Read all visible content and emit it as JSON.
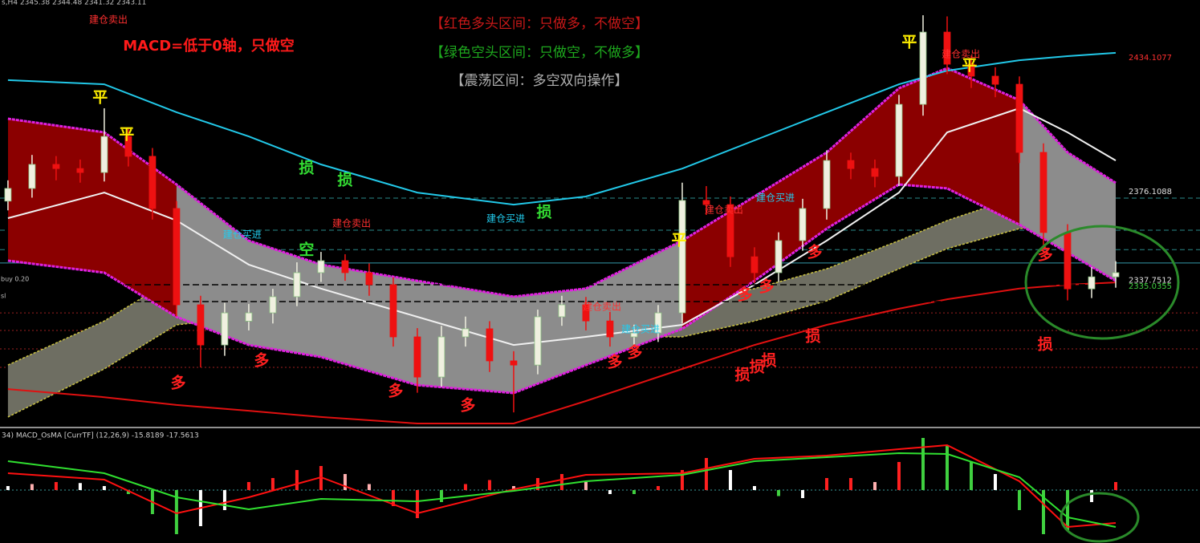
{
  "header": {
    "symbol_info": "s,H4  2345.38 2344.48 2341.32 2343.11"
  },
  "notes": [
    "【红色多头区间：只做多，不做空】",
    "【绿色空头区间：只做空，不做多】",
    "【震荡区间：多空双向操作】",
    "MACD=低于0轴，只做空"
  ],
  "chart_data": [
    {
      "type": "candlestick",
      "xlim": [
        -0.33,
        49.5
      ],
      "ylim": [
        2274.3,
        2459.1
      ],
      "up_color": "#f0f0e0",
      "down_color": "#ee1111",
      "open": [
        2372.0,
        2377.5,
        2387.9,
        2386.1,
        2384.4,
        2400.0,
        2391.4,
        2368.8,
        2327.1,
        2309.7,
        2320.0,
        2323.6,
        2330.6,
        2341.0,
        2346.2,
        2341.0,
        2335.8,
        2313.2,
        2295.8,
        2313.2,
        2316.7,
        2302.8,
        2301.0,
        2321.9,
        2327.1,
        2320.1,
        2313.2,
        2314.9,
        2323.6,
        2372.3,
        2370.5,
        2347.9,
        2341.0,
        2354.9,
        2368.8,
        2389.6,
        2386.1,
        2382.7,
        2413.9,
        2445.2,
        2431.3,
        2426.1,
        2422.6,
        2393.1,
        2358.4,
        2334.0,
        2339.2
      ],
      "high": [
        2381.0,
        2392.0,
        2391.5,
        2390.0,
        2412.2,
        2404.0,
        2395.0,
        2372.0,
        2331.0,
        2328.0,
        2327.5,
        2334.0,
        2345.5,
        2350.0,
        2349.0,
        2345.0,
        2339.0,
        2317.0,
        2318.0,
        2322.0,
        2320.0,
        2307.0,
        2325.0,
        2331.0,
        2330.5,
        2324.0,
        2318.5,
        2327.0,
        2380.0,
        2378.5,
        2374.0,
        2352.0,
        2358.5,
        2373.0,
        2394.0,
        2393.0,
        2390.0,
        2418.0,
        2452.5,
        2452.0,
        2435.0,
        2430.0,
        2426.0,
        2397.0,
        2362.0,
        2343.5,
        2346.0
      ],
      "low": [
        2368.0,
        2373.5,
        2381.0,
        2380.0,
        2380.5,
        2387.0,
        2364.0,
        2322.0,
        2300.0,
        2305.0,
        2316.0,
        2319.0,
        2326.5,
        2337.0,
        2337.5,
        2331.0,
        2309.0,
        2289.0,
        2291.5,
        2309.0,
        2298.0,
        2280.5,
        2297.0,
        2318.0,
        2316.0,
        2309.0,
        2309.5,
        2311.0,
        2319.0,
        2366.0,
        2343.5,
        2336.5,
        2337.0,
        2350.5,
        2364.0,
        2381.5,
        2378.0,
        2378.5,
        2409.0,
        2427.0,
        2421.0,
        2417.0,
        2388.5,
        2353.0,
        2329.0,
        2330.0,
        2334.5
      ],
      "close": [
        2377.5,
        2387.9,
        2386.1,
        2384.4,
        2400.0,
        2391.4,
        2368.8,
        2327.1,
        2309.7,
        2323.6,
        2323.6,
        2330.6,
        2341.0,
        2346.2,
        2341.0,
        2335.8,
        2313.2,
        2295.8,
        2313.2,
        2316.7,
        2302.8,
        2301.0,
        2321.9,
        2327.1,
        2320.1,
        2313.2,
        2314.9,
        2323.6,
        2372.3,
        2370.5,
        2347.9,
        2341.0,
        2354.9,
        2368.8,
        2389.6,
        2386.1,
        2382.7,
        2413.9,
        2445.2,
        2431.3,
        2426.1,
        2422.6,
        2393.1,
        2358.4,
        2334.0,
        2339.2,
        2341.0
      ],
      "ribbon": {
        "fill": "#6e6e62",
        "edge_color": "#c8c040",
        "upper": {
          "x": [
            0,
            4,
            7,
            10,
            13,
            17,
            21,
            24,
            28,
            31,
            34,
            37,
            39,
            42,
            44,
            46
          ],
          "values": [
            2301.0,
            2320.1,
            2339.2,
            2342.7,
            2341.0,
            2334.1,
            2330.6,
            2328.8,
            2327.8,
            2334.1,
            2342.7,
            2354.9,
            2363.6,
            2374.0,
            2377.5,
            2376.8
          ]
        },
        "lower": {
          "x": [
            0,
            4,
            7,
            10,
            13,
            17,
            21,
            24,
            28,
            31,
            34,
            37,
            39,
            42,
            44,
            46
          ],
          "values": [
            2278.5,
            2299.3,
            2318.4,
            2321.9,
            2320.1,
            2316.7,
            2313.2,
            2313.2,
            2313.2,
            2320.1,
            2328.8,
            2342.7,
            2351.4,
            2360.1,
            2361.8,
            2361.1
          ]
        }
      },
      "band": {
        "color": "#e020e0",
        "fills": [
          {
            "from": 0,
            "to": 7,
            "color": "#8b0000"
          },
          {
            "from": 7,
            "to": 28,
            "color": "#8c8c8c"
          },
          {
            "from": 28,
            "to": 42,
            "color": "#8b0000"
          },
          {
            "from": 42,
            "to": 46,
            "color": "#8c8c8c"
          }
        ],
        "upper": {
          "x": [
            0,
            4,
            7,
            10,
            13,
            17,
            21,
            24,
            28,
            31,
            34,
            37,
            39,
            42,
            44,
            46
          ],
          "values": [
            2407.7,
            2401.8,
            2379.2,
            2354.9,
            2344.5,
            2337.5,
            2330.6,
            2334.1,
            2354.9,
            2374.0,
            2393.1,
            2420.9,
            2429.6,
            2415.7,
            2393.1,
            2379.9
          ]
        },
        "lower": {
          "x": [
            0,
            4,
            7,
            10,
            13,
            17,
            21,
            24,
            28,
            31,
            34,
            37,
            39,
            42,
            44,
            46
          ],
          "values": [
            2346.2,
            2341.0,
            2321.9,
            2309.7,
            2304.5,
            2292.3,
            2288.9,
            2301.0,
            2316.7,
            2337.5,
            2360.1,
            2379.2,
            2377.5,
            2361.8,
            2349.7,
            2337.5
          ]
        }
      },
      "lines": [
        {
          "color": "#22c8e8",
          "x": [
            0,
            4,
            7,
            10,
            13,
            17,
            21,
            24,
            28,
            31,
            34,
            37,
            39,
            42,
            44,
            46
          ],
          "values": [
            2424.4,
            2422.6,
            2410.5,
            2400.0,
            2387.9,
            2375.7,
            2370.5,
            2374.0,
            2386.1,
            2398.3,
            2410.5,
            2422.6,
            2428.5,
            2433.0,
            2434.8,
            2436.2
          ]
        },
        {
          "color": "#e01010",
          "x": [
            0,
            4,
            7,
            10,
            13,
            17,
            21,
            24,
            28,
            31,
            34,
            37,
            39,
            42,
            44,
            46
          ],
          "values": [
            2290.6,
            2287.1,
            2283.7,
            2281.2,
            2278.5,
            2275.7,
            2275.7,
            2285.4,
            2299.3,
            2309.7,
            2318.4,
            2325.4,
            2329.5,
            2334.1,
            2335.8,
            2336.8
          ]
        },
        {
          "color": "#f0f0f0",
          "x": [
            0,
            4,
            7,
            10,
            13,
            17,
            21,
            24,
            28,
            31,
            34,
            37,
            39,
            42,
            44,
            46
          ],
          "values": [
            2364.6,
            2375.7,
            2363.6,
            2344.5,
            2334.1,
            2321.9,
            2309.7,
            2313.2,
            2318.4,
            2335.8,
            2354.9,
            2375.7,
            2401.8,
            2412.2,
            2401.8,
            2389.6
          ]
        }
      ],
      "levels": [
        {
          "value": 2373.3,
          "color": "#2a8a8a",
          "style": "dashed"
        },
        {
          "value": 2359.4,
          "color": "#2a8a8a",
          "style": "dashed"
        },
        {
          "value": 2351.0,
          "color": "#2a8a8a",
          "style": "dashed"
        },
        {
          "value": 2345.2,
          "color": "#3399aa",
          "style": "solid"
        },
        {
          "value": 2323.6,
          "color": "#a02020",
          "style": "dotted"
        },
        {
          "value": 2316.0,
          "color": "#a02020",
          "style": "dotted"
        },
        {
          "value": 2308.0,
          "color": "#a02020",
          "style": "dotted"
        },
        {
          "value": 2300.0,
          "color": "#a02020",
          "style": "dotted"
        }
      ],
      "order_lines": [
        {
          "label": "buy 0.20",
          "value": 2335.8
        },
        {
          "label": "sl",
          "value": 2328.5
        }
      ],
      "price_tags": [
        {
          "value": 2434.1077,
          "color": "#ff3030"
        },
        {
          "value": 2376.1088,
          "color": "#e0e0e0"
        },
        {
          "value": 2337.7512,
          "color": "#e0e0e0"
        },
        {
          "value": 2335.0355,
          "color": "#40d040"
        }
      ],
      "annotations": [
        {
          "text": "建仓卖出",
          "x": 4.17,
          "y": 2450.4,
          "color": "#ff3030"
        },
        {
          "text": "平",
          "x": 3.83,
          "y": 2416.7,
          "color": "#ffee00"
        },
        {
          "text": "平",
          "x": 4.93,
          "y": 2400.7,
          "color": "#ffee00"
        },
        {
          "text": "损",
          "x": 12.4,
          "y": 2386.1,
          "color": "#33dd33"
        },
        {
          "text": "损",
          "x": 14.0,
          "y": 2380.9,
          "color": "#33dd33"
        },
        {
          "text": "损",
          "x": 22.27,
          "y": 2367.0,
          "color": "#33dd33"
        },
        {
          "text": "建仓买进",
          "x": 9.73,
          "y": 2357.3,
          "color": "#22ccee"
        },
        {
          "text": "空",
          "x": 12.4,
          "y": 2350.7,
          "color": "#33dd33"
        },
        {
          "text": "建仓卖出",
          "x": 14.27,
          "y": 2362.2,
          "color": "#ff3030"
        },
        {
          "text": "建仓买进",
          "x": 20.67,
          "y": 2364.3,
          "color": "#22ccee"
        },
        {
          "text": "多",
          "x": 7.07,
          "y": 2293.0,
          "color": "#ff2020"
        },
        {
          "text": "多",
          "x": 10.53,
          "y": 2302.8,
          "color": "#ff2020"
        },
        {
          "text": "多",
          "x": 16.1,
          "y": 2289.6,
          "color": "#ff2020"
        },
        {
          "text": "多",
          "x": 19.1,
          "y": 2283.3,
          "color": "#ff2020"
        },
        {
          "text": "平",
          "x": 27.87,
          "y": 2354.9,
          "color": "#ffee00"
        },
        {
          "text": "建仓卖出",
          "x": 29.73,
          "y": 2368.1,
          "color": "#ff3030"
        },
        {
          "text": "建仓买进",
          "x": 31.87,
          "y": 2373.3,
          "color": "#22ccee"
        },
        {
          "text": "建仓卖出",
          "x": 24.67,
          "y": 2326.1,
          "color": "#ff3030"
        },
        {
          "text": "建仓买进",
          "x": 26.27,
          "y": 2316.3,
          "color": "#22ccee"
        },
        {
          "text": "多",
          "x": 25.2,
          "y": 2302.1,
          "color": "#ff2020"
        },
        {
          "text": "多",
          "x": 26.03,
          "y": 2306.3,
          "color": "#ff2020"
        },
        {
          "text": "多",
          "x": 30.6,
          "y": 2331.3,
          "color": "#ff2020"
        },
        {
          "text": "多",
          "x": 31.5,
          "y": 2334.7,
          "color": "#ff2020"
        },
        {
          "text": "多",
          "x": 33.5,
          "y": 2349.7,
          "color": "#ff2020"
        },
        {
          "text": "损",
          "x": 33.43,
          "y": 2313.2,
          "color": "#ff2020"
        },
        {
          "text": "损",
          "x": 31.6,
          "y": 2302.8,
          "color": "#ff2020"
        },
        {
          "text": "损",
          "x": 31.1,
          "y": 2300.0,
          "color": "#ff2020"
        },
        {
          "text": "损",
          "x": 30.5,
          "y": 2296.5,
          "color": "#ff2020"
        },
        {
          "text": "平",
          "x": 37.43,
          "y": 2440.7,
          "color": "#ffee00"
        },
        {
          "text": "建仓卖出",
          "x": 39.57,
          "y": 2435.5,
          "color": "#ff3030"
        },
        {
          "text": "平",
          "x": 39.93,
          "y": 2430.6,
          "color": "#ffee00"
        },
        {
          "text": "多",
          "x": 43.07,
          "y": 2348.6,
          "color": "#ff2020"
        },
        {
          "text": "损",
          "x": 43.07,
          "y": 2309.7,
          "color": "#ff2020"
        }
      ]
    },
    {
      "type": "macd",
      "title": "34)  MACD_OsMA [CurrTF] (12,26,9) -15.8189 -17.5613",
      "xlim": [
        -0.33,
        49.5
      ],
      "ylim": [
        -26.4,
        29.6
      ],
      "values": [
        2.0,
        3.0,
        4.0,
        3.5,
        2.0,
        -2,
        -12,
        -22,
        -18,
        -10,
        4,
        6,
        10,
        12,
        8,
        3,
        -8,
        -14,
        -6,
        3,
        5,
        2,
        6,
        8,
        4,
        -2,
        -2,
        2,
        10,
        16,
        10,
        2,
        -3,
        -4,
        6,
        6,
        4,
        14,
        26,
        22,
        14,
        8,
        -10,
        -22,
        -20,
        -6,
        4
      ],
      "colors": [
        "#ffffff",
        "#ffb0b0",
        "#ff2020",
        "#ffffff",
        "#ffffff",
        "#40d040",
        "#40d040",
        "#40d040",
        "#ffffff",
        "#ffffff",
        "#ff2020",
        "#ff2020",
        "#ff2020",
        "#ff2020",
        "#ffb0b0",
        "#ffb0b0",
        "#ff2020",
        "#ff2020",
        "#40d040",
        "#ff2020",
        "#ff2020",
        "#ffb0b0",
        "#ff2020",
        "#ff2020",
        "#ffb0b0",
        "#ffffff",
        "#40d040",
        "#ff2020",
        "#ff2020",
        "#ff2020",
        "#ffffff",
        "#ffffff",
        "#40d040",
        "#ffffff",
        "#ff2020",
        "#ff2020",
        "#ffb0b0",
        "#ff2020",
        "#40d040",
        "#40d040",
        "#40d040",
        "#ffffff",
        "#40d040",
        "#40d040",
        "#40d040",
        "#ffffff",
        "#ff2020"
      ],
      "lines": [
        {
          "color": "#ff1010",
          "x": [
            0,
            4,
            7,
            10,
            13,
            17,
            21,
            24,
            28,
            31,
            34,
            37,
            39,
            42,
            44,
            46
          ],
          "values": [
            8.4,
            5.2,
            -11.6,
            -3.6,
            6.4,
            -11.6,
            0.4,
            7.6,
            8.4,
            15.6,
            17.2,
            20.4,
            22.4,
            4.4,
            -18.4,
            -16.4
          ]
        },
        {
          "color": "#30e030",
          "x": [
            0,
            4,
            7,
            10,
            13,
            17,
            21,
            24,
            28,
            31,
            34,
            37,
            39,
            42,
            44,
            46
          ],
          "values": [
            14.4,
            8.4,
            -3.6,
            -9.6,
            -4.4,
            -5.6,
            -0.4,
            4.4,
            7.6,
            14.4,
            16.4,
            18.4,
            18.0,
            6.4,
            -13.6,
            -18.4
          ]
        }
      ]
    }
  ]
}
